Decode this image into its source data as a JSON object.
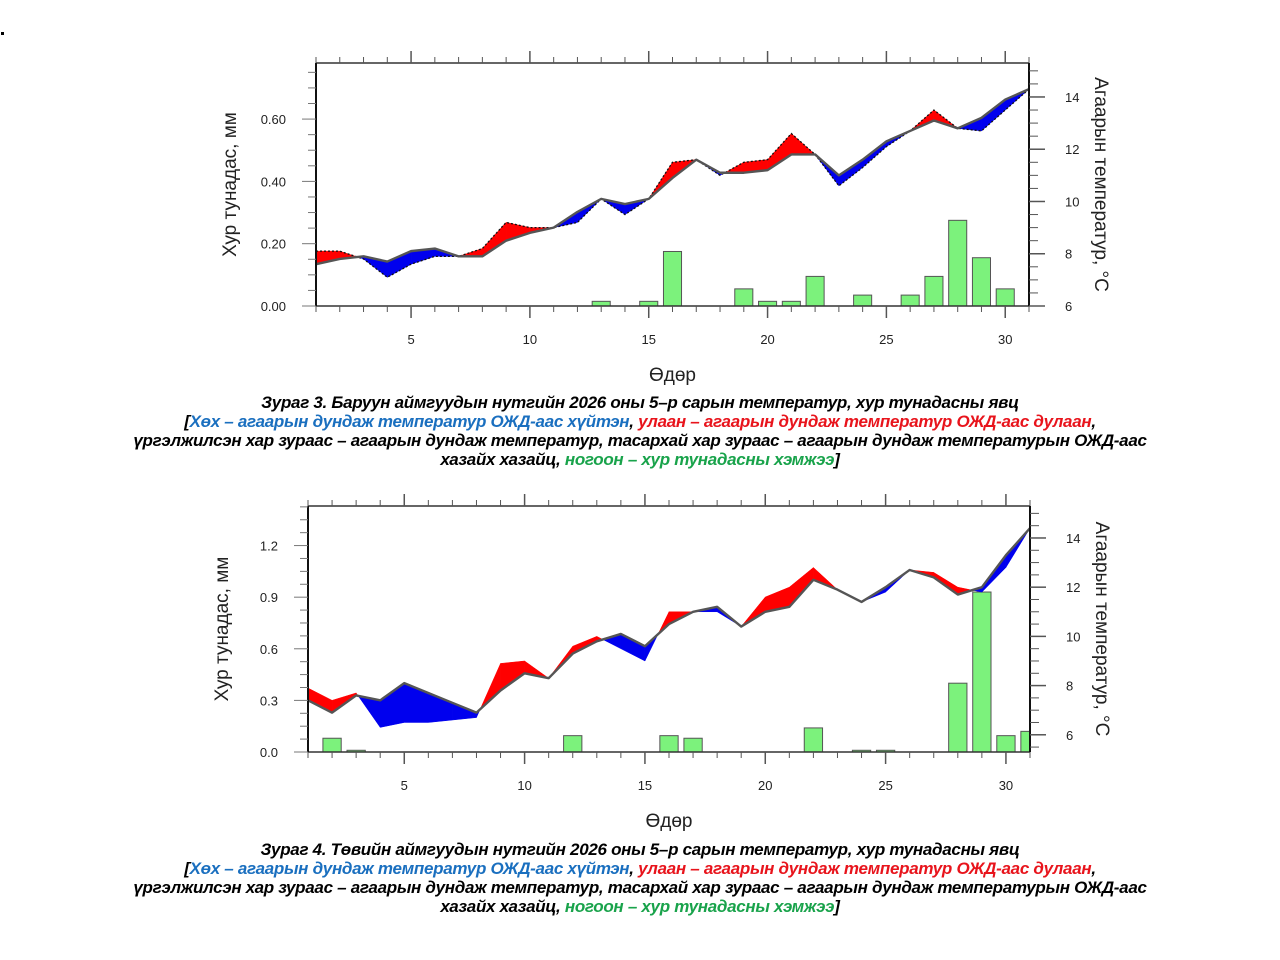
{
  "colors": {
    "cold": "#0000ee",
    "warm": "#ff0000",
    "mean_line": "#555555",
    "precip_bar": "#7cf27c",
    "precip_edge": "#555555",
    "caption_blue": "#1a6fbf",
    "caption_red": "#e8141c",
    "caption_green": "#19a34b"
  },
  "chart_data": [
    {
      "type": "bar+line",
      "title": "Зураг 3. Баруун аймгуудын нутгийн 2026 оны 5–р сарын температур, хур тунадасны явц",
      "xlabel": "Өдөр",
      "ylabel_left": "Хур тунадас, мм",
      "ylabel_right": "Агаарын температур, °C",
      "xlim": [
        1,
        31
      ],
      "ylim_left": [
        0,
        0.78
      ],
      "ylim_right": [
        6,
        15.3
      ],
      "x_ticks": [
        5,
        10,
        15,
        20,
        25,
        30
      ],
      "x_tick_labels": [
        "5",
        "10",
        "15",
        "20",
        "25",
        "30"
      ],
      "y_left_ticks": [
        0,
        0.2,
        0.4,
        0.6
      ],
      "y_left_tick_labels": [
        "0.00",
        "0.20",
        "0.40",
        "0.60"
      ],
      "y_right_ticks": [
        6,
        8,
        10,
        12,
        14
      ],
      "y_right_tick_labels": [
        "6",
        "8",
        "10",
        "12",
        "14"
      ],
      "grid": false,
      "x": [
        1,
        2,
        3,
        4,
        5,
        6,
        7,
        8,
        9,
        10,
        11,
        12,
        13,
        14,
        15,
        16,
        17,
        18,
        19,
        20,
        21,
        22,
        23,
        24,
        25,
        26,
        27,
        28,
        29,
        30,
        31
      ],
      "series": [
        {
          "name": "Агаарын дундаж температур",
          "axis": "right",
          "style": "solid",
          "values": [
            7.6,
            7.8,
            7.9,
            7.7,
            8.1,
            8.2,
            7.9,
            7.9,
            8.5,
            8.8,
            9.0,
            9.6,
            10.1,
            9.9,
            10.1,
            10.9,
            11.6,
            11.1,
            11.1,
            11.2,
            11.8,
            11.8,
            11.0,
            11.6,
            12.3,
            12.7,
            13.1,
            12.8,
            13.2,
            13.9,
            14.3
          ]
        },
        {
          "name": "Агаарын дундаж температурын ОЖД-аас хазайх хазайц",
          "axis": "right",
          "style": "dashed",
          "values": [
            8.1,
            8.1,
            7.8,
            7.1,
            7.6,
            7.9,
            7.9,
            8.2,
            9.2,
            9.0,
            9.0,
            9.2,
            10.1,
            9.5,
            10.1,
            11.5,
            11.6,
            11.0,
            11.5,
            11.6,
            12.6,
            11.8,
            10.6,
            11.3,
            12.1,
            12.7,
            13.5,
            12.8,
            12.7,
            13.5,
            14.3
          ]
        },
        {
          "name": "Хур тунадасны хэмжээ",
          "axis": "left",
          "style": "bar",
          "values": [
            0,
            0,
            0,
            0,
            0,
            0,
            0,
            0,
            0,
            0,
            0,
            0,
            0.015,
            0,
            0.015,
            0.175,
            0,
            0,
            0.055,
            0.015,
            0.015,
            0.095,
            0,
            0.035,
            0,
            0.035,
            0.095,
            0.275,
            0.155,
            0.055,
            0
          ]
        }
      ]
    },
    {
      "type": "bar+line",
      "title": "Зураг 4. Төвийн аймгуудын нутгийн 2026 оны 5–р сарын температур, хур тунадасны явц",
      "xlabel": "Өдөр",
      "ylabel_left": "Хур тунадас, мм",
      "ylabel_right": "Агаарын температур, °C",
      "xlim": [
        1,
        31
      ],
      "ylim_left": [
        0,
        1.43
      ],
      "ylim_right": [
        5.3,
        15.3
      ],
      "x_ticks": [
        5,
        10,
        15,
        20,
        25,
        30
      ],
      "x_tick_labels": [
        "5",
        "10",
        "15",
        "20",
        "25",
        "30"
      ],
      "y_left_ticks": [
        0,
        0.3,
        0.6,
        0.9,
        1.2
      ],
      "y_left_tick_labels": [
        "0.0",
        "0.3",
        "0.6",
        "0.9",
        "1.2"
      ],
      "y_right_ticks": [
        6,
        8,
        10,
        12,
        14
      ],
      "y_right_tick_labels": [
        "6",
        "8",
        "10",
        "12",
        "14"
      ],
      "grid": false,
      "x": [
        1,
        2,
        3,
        4,
        5,
        6,
        7,
        8,
        9,
        10,
        11,
        12,
        13,
        14,
        15,
        16,
        17,
        18,
        19,
        20,
        21,
        22,
        23,
        24,
        25,
        26,
        27,
        28,
        29,
        30,
        31
      ],
      "series": [
        {
          "name": "Агаарын дундаж температур",
          "axis": "right",
          "style": "solid",
          "values": [
            7.4,
            6.9,
            7.6,
            7.4,
            8.1,
            7.7,
            7.3,
            6.9,
            7.8,
            8.5,
            8.3,
            9.3,
            9.8,
            10.1,
            9.6,
            10.5,
            11.0,
            11.2,
            10.4,
            11.0,
            11.2,
            12.3,
            11.9,
            11.4,
            12.0,
            12.7,
            12.4,
            11.7,
            12.0,
            13.3,
            14.4
          ]
        },
        {
          "name": "Агаарын дундаж температурын ОЖД-аас хазайх хазайц",
          "axis": "right",
          "style": "none",
          "values": [
            7.9,
            7.4,
            7.7,
            6.3,
            6.5,
            6.5,
            6.6,
            6.7,
            8.9,
            9.0,
            8.3,
            9.6,
            10.0,
            9.5,
            9.0,
            11.0,
            11.0,
            11.0,
            10.4,
            11.6,
            12.0,
            12.8,
            11.9,
            11.4,
            11.8,
            12.7,
            12.6,
            12.0,
            11.8,
            12.8,
            14.4
          ]
        },
        {
          "name": "Хур тунадасны хэмжээ",
          "axis": "left",
          "style": "bar",
          "values": [
            0,
            0.08,
            0.01,
            0,
            0,
            0,
            0,
            0,
            0,
            0,
            0,
            0.095,
            0,
            0,
            0,
            0.095,
            0.08,
            0,
            0,
            0,
            0,
            0.14,
            0,
            0.01,
            0.01,
            0,
            0,
            0.4,
            0.93,
            0.095,
            0.12
          ]
        }
      ]
    }
  ],
  "captions": [
    {
      "title": "Зураг 3. Баруун аймгуудын нутгийн 2026 оны 5–р сарын температур, хур тунадасны явц",
      "open_bracket": "[",
      "blue": "Хөх – агаарын дундаж температур ОЖД-аас хүйтэн",
      "comma1": ", ",
      "red": "улаан – агаарын дундаж температур ОЖД-аас дулаан",
      "comma2": ",",
      "black_line": "үргэлжилсэн хар зураас – агаарын дундаж температур, тасархай хар зураас – агаарын дундаж температурын ОЖД-аас",
      "black_tail": "хазайх хазайц, ",
      "green": "ногоон – хур тунадасны хэмжээ",
      "close_bracket": "]"
    },
    {
      "title": "Зураг 4. Төвийн аймгуудын нутгийн 2026 оны 5–р сарын температур, хур тунадасны явц",
      "open_bracket": "[",
      "blue": "Хөх – агаарын дундаж температур ОЖД-аас хүйтэн",
      "comma1": ", ",
      "red": "улаан – агаарын дундаж температур ОЖД-аас дулаан",
      "comma2": ",",
      "black_line": "үргэлжилсэн хар зураас – агаарын дундаж температур, тасархай хар зураас – агаарын дундаж температурын ОЖД-аас",
      "black_tail": "хазайх хазайц, ",
      "green": "ногоон – хур тунадасны хэмжээ",
      "close_bracket": "]"
    }
  ]
}
